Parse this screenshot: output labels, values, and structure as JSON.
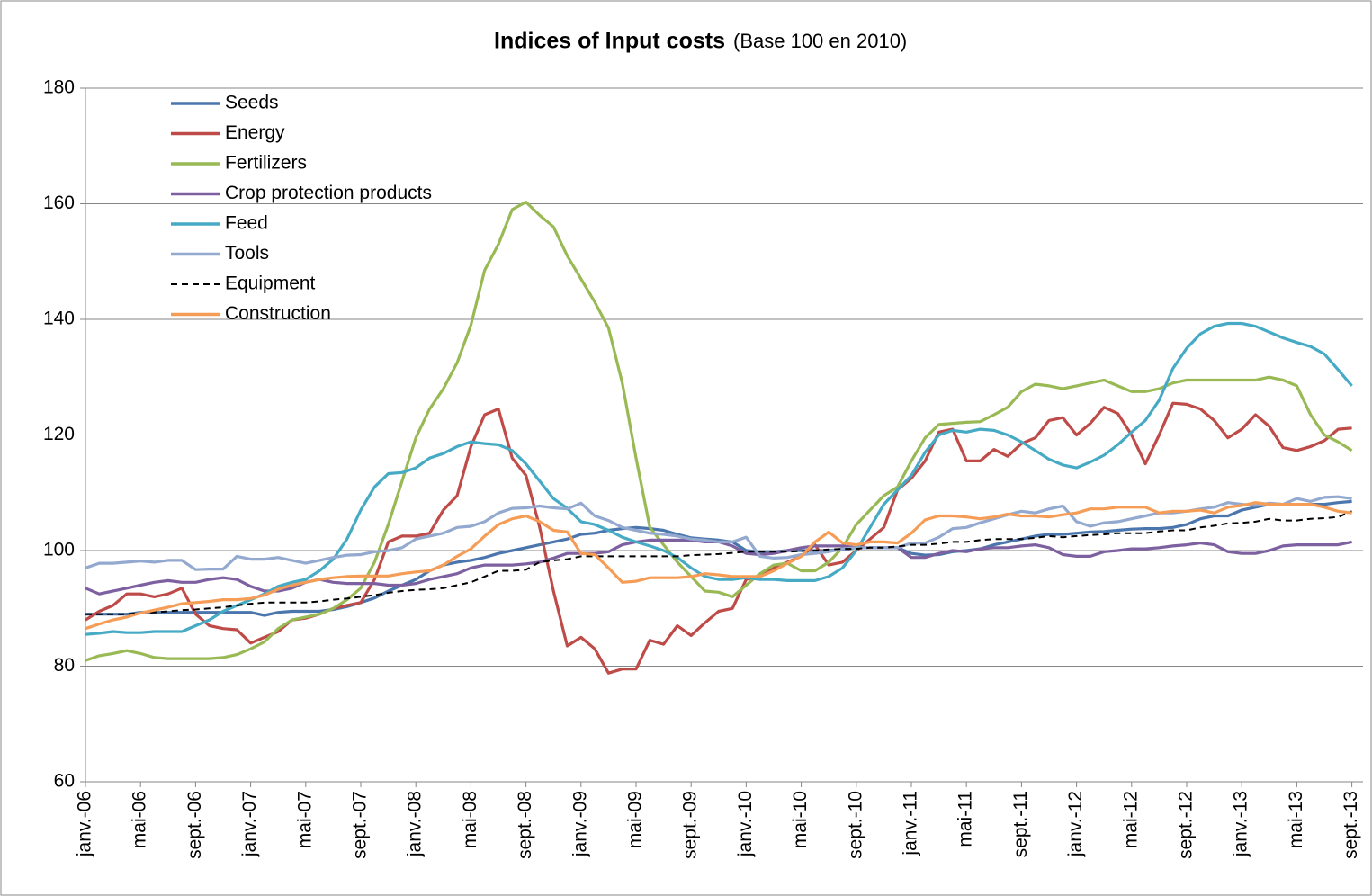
{
  "chart_data": {
    "type": "line",
    "title": "Indices of Input costs",
    "subtitle": "(Base 100 en 2010)",
    "categories": [
      "janv.-06",
      null,
      null,
      null,
      "mai-06",
      null,
      null,
      null,
      "sept.-06",
      null,
      null,
      null,
      "janv.-07",
      null,
      null,
      null,
      "mai-07",
      null,
      null,
      null,
      "sept.-07",
      null,
      null,
      null,
      "janv.-08",
      null,
      null,
      null,
      "mai-08",
      null,
      null,
      null,
      "sept.-08",
      null,
      null,
      null,
      "janv.-09",
      null,
      null,
      null,
      "mai-09",
      null,
      null,
      null,
      "sept.-09",
      null,
      null,
      null,
      "janv.-10",
      null,
      null,
      null,
      "mai-10",
      null,
      null,
      null,
      "sept.-10",
      null,
      null,
      null,
      "janv.-11",
      null,
      null,
      null,
      "mai-11",
      null,
      null,
      null,
      "sept.-11",
      null,
      null,
      null,
      "janv.-12",
      null,
      null,
      null,
      "mai-12",
      null,
      null,
      null,
      "sept.-12",
      null,
      null,
      null,
      "janv.-13",
      null,
      null,
      null,
      "mai-13",
      null,
      null,
      null,
      "sept.-13"
    ],
    "ylim": [
      60,
      180
    ],
    "yticks": [
      60,
      80,
      100,
      120,
      140,
      160,
      180
    ],
    "grid": true,
    "legend": "top-left",
    "series": [
      {
        "name": "Seeds",
        "color": "#4a76ad",
        "values": [
          89,
          89,
          89,
          89,
          89.3,
          89.3,
          89.3,
          89.3,
          89.3,
          89.3,
          89.3,
          89.3,
          89.3,
          88.8,
          89.3,
          89.5,
          89.5,
          89.5,
          89.8,
          90.3,
          91,
          91.8,
          93,
          94,
          95,
          96.5,
          97.5,
          98,
          98.3,
          98.8,
          99.5,
          100,
          100.5,
          101,
          101.5,
          102,
          102.8,
          103,
          103.5,
          103.8,
          104,
          103.8,
          103.5,
          102.8,
          102.2,
          102,
          101.8,
          101.5,
          100,
          99.8,
          99.8,
          100,
          100,
          100,
          100,
          100.2,
          100.5,
          100.5,
          100.5,
          100.5,
          99.5,
          99.2,
          99.3,
          99.8,
          100,
          100.3,
          101,
          101.5,
          102,
          102.5,
          102.8,
          102.8,
          103,
          103.2,
          103.3,
          103.5,
          103.7,
          103.8,
          103.8,
          104,
          104.5,
          105.5,
          106,
          106,
          107,
          107.5,
          108,
          108,
          108,
          108,
          108,
          108.3,
          108.5
        ]
      },
      {
        "name": "Energy",
        "color": "#be4b48",
        "values": [
          88,
          89.5,
          90.5,
          92.5,
          92.5,
          92,
          92.5,
          93.5,
          89,
          87,
          86.5,
          86.3,
          84,
          85,
          86,
          88,
          88.3,
          89,
          90,
          90.5,
          91,
          95,
          101.5,
          102.5,
          102.5,
          103,
          107,
          109.5,
          118,
          123.5,
          124.5,
          116,
          113,
          104,
          93,
          83.5,
          85,
          83,
          78.8,
          79.5,
          79.5,
          84.5,
          83.8,
          87,
          85.3,
          87.5,
          89.5,
          90,
          95,
          95.5,
          97,
          98,
          99,
          101,
          97.5,
          98,
          100,
          102,
          104,
          110.5,
          112.5,
          115.5,
          120.5,
          121,
          115.5,
          115.5,
          117.5,
          116.3,
          118.5,
          119.5,
          122.5,
          123,
          120,
          122,
          124.8,
          123.7,
          120,
          115,
          120,
          125.5,
          125.3,
          124.5,
          122.5,
          119.5,
          121,
          123.5,
          121.5,
          117.8,
          117.3,
          118,
          119,
          121,
          121.2
        ]
      },
      {
        "name": "Fertilizers",
        "color": "#98b954",
        "values": [
          81,
          81.8,
          82.2,
          82.7,
          82.2,
          81.5,
          81.3,
          81.3,
          81.3,
          81.3,
          81.5,
          82,
          83,
          84.2,
          86.5,
          88,
          88.5,
          89,
          90,
          91.5,
          93.5,
          98,
          104.5,
          112,
          119.5,
          124.5,
          128,
          132.5,
          139,
          148.5,
          153,
          159,
          160.3,
          158,
          156,
          151,
          147,
          143,
          138.5,
          129,
          116,
          104,
          101,
          98,
          95.5,
          93,
          92.8,
          92,
          94,
          96,
          97.5,
          97.8,
          96.5,
          96.5,
          98,
          100.5,
          104.5,
          107,
          109.5,
          111,
          115.5,
          119.5,
          121.8,
          122,
          122.2,
          122.3,
          123.5,
          124.8,
          127.5,
          128.8,
          128.5,
          128,
          128.5,
          129,
          129.5,
          128.5,
          127.5,
          127.5,
          128,
          129,
          129.5,
          129.5,
          129.5,
          129.5,
          129.5,
          129.5,
          130,
          129.5,
          128.5,
          123.5,
          120,
          118.8,
          117.3
        ]
      },
      {
        "name": "Crop protection products",
        "color": "#7d60a0",
        "values": [
          93.5,
          92.5,
          93,
          93.5,
          94,
          94.5,
          94.8,
          94.5,
          94.5,
          95,
          95.3,
          95,
          93.8,
          93,
          93,
          93.5,
          94.5,
          95,
          94.5,
          94.3,
          94.3,
          94.3,
          94,
          94,
          94.3,
          95,
          95.5,
          96,
          97,
          97.5,
          97.5,
          97.5,
          97.7,
          98,
          98.7,
          99.5,
          99.5,
          99.5,
          99.8,
          101,
          101.5,
          101.8,
          101.8,
          101.8,
          101.8,
          101.5,
          101.5,
          100.8,
          99.5,
          99.3,
          99.5,
          100,
          100.5,
          100.8,
          100.8,
          100.8,
          100.5,
          100.5,
          100.5,
          100.5,
          98.8,
          98.8,
          99.5,
          100,
          99.8,
          100.3,
          100.5,
          100.5,
          100.8,
          101,
          100.5,
          99.3,
          99,
          99,
          99.8,
          100,
          100.3,
          100.3,
          100.5,
          100.8,
          101,
          101.3,
          101,
          99.8,
          99.5,
          99.5,
          100,
          100.8,
          101,
          101,
          101,
          101,
          101.5
        ]
      },
      {
        "name": "Feed",
        "color": "#46aac5",
        "values": [
          85.5,
          85.7,
          86,
          85.8,
          85.8,
          86,
          86,
          86,
          87,
          88,
          89.5,
          90.5,
          91.5,
          92.5,
          93.8,
          94.5,
          95,
          96.5,
          98.5,
          102,
          107,
          111,
          113.3,
          113.5,
          114.3,
          116,
          116.8,
          118,
          118.8,
          118.5,
          118.3,
          117.3,
          115,
          112,
          109,
          107.3,
          105,
          104.5,
          103.5,
          102.3,
          101.5,
          100.8,
          100,
          98.8,
          97,
          95.5,
          95,
          95,
          95.3,
          95,
          95,
          94.8,
          94.8,
          94.8,
          95.5,
          97,
          100,
          104,
          108,
          110.5,
          113,
          117,
          120,
          120.8,
          120.5,
          121,
          120.8,
          120,
          118.8,
          117.3,
          115.8,
          114.8,
          114.3,
          115.3,
          116.5,
          118.3,
          120.5,
          122.5,
          126,
          131.5,
          135,
          137.5,
          138.8,
          139.3,
          139.3,
          138.8,
          137.8,
          136.8,
          136,
          135.3,
          134,
          131.3,
          128.5
        ]
      },
      {
        "name": "Tools",
        "color": "#93a9cf",
        "values": [
          97,
          97.8,
          97.8,
          98,
          98.2,
          98,
          98.3,
          98.3,
          96.7,
          96.8,
          96.8,
          99,
          98.5,
          98.5,
          98.8,
          98.3,
          97.8,
          98.3,
          98.8,
          99.2,
          99.3,
          99.8,
          100,
          100.5,
          102,
          102.5,
          103,
          104,
          104.2,
          105,
          106.5,
          107.3,
          107.4,
          107.7,
          107.4,
          107.2,
          108.2,
          106,
          105.2,
          104,
          103.5,
          103,
          102.8,
          102.5,
          102,
          101.8,
          101.5,
          101.5,
          102.3,
          99,
          98.7,
          98.8,
          99.3,
          99.5,
          99.8,
          100.3,
          100.5,
          100.5,
          100.5,
          100.5,
          101.3,
          101.3,
          102.3,
          103.8,
          104,
          104.8,
          105.5,
          106.2,
          106.8,
          106.5,
          107.2,
          107.7,
          105,
          104.2,
          104.8,
          105,
          105.5,
          106,
          106.5,
          106.5,
          106.8,
          107.2,
          107.5,
          108.3,
          108,
          107.8,
          108.2,
          108,
          109,
          108.5,
          109.2,
          109.3,
          109
        ]
      },
      {
        "name": "Equipment",
        "color": "#000000",
        "dash": "7,5",
        "values": [
          89,
          89,
          89,
          89,
          89.2,
          89.3,
          89.5,
          89.7,
          89.8,
          90,
          90.2,
          90.5,
          90.8,
          91,
          91,
          91,
          91,
          91.2,
          91.5,
          91.7,
          92,
          92.3,
          92.7,
          93,
          93.2,
          93.3,
          93.5,
          94,
          94.5,
          95.5,
          96.5,
          96.5,
          96.7,
          98,
          98.3,
          98.5,
          99,
          99,
          99,
          99,
          99,
          99,
          99,
          99,
          99.2,
          99.3,
          99.4,
          99.6,
          99.8,
          99.8,
          99.8,
          99.8,
          99.9,
          100,
          100.2,
          100.3,
          100.3,
          100.5,
          100.5,
          100.7,
          101,
          101,
          101.2,
          101.5,
          101.5,
          101.8,
          102,
          102,
          102,
          102.2,
          102.5,
          102.3,
          102.5,
          102.7,
          102.8,
          103,
          103,
          103,
          103.3,
          103.5,
          103.5,
          104,
          104.3,
          104.7,
          104.8,
          105,
          105.5,
          105.2,
          105.2,
          105.5,
          105.6,
          105.8,
          106.8
        ]
      },
      {
        "name": "Construction",
        "color": "#f59d56",
        "values": [
          86.5,
          87.3,
          88,
          88.5,
          89.2,
          89.7,
          90.2,
          90.8,
          91,
          91.2,
          91.5,
          91.5,
          91.7,
          92.3,
          93.3,
          94,
          94.5,
          95,
          95.3,
          95.5,
          95.6,
          95.6,
          95.6,
          96,
          96.3,
          96.5,
          97.5,
          99,
          100.3,
          102.5,
          104.5,
          105.5,
          106,
          105,
          103.5,
          103.2,
          99.5,
          99.3,
          97,
          94.5,
          94.7,
          95.3,
          95.3,
          95.3,
          95.5,
          96,
          95.8,
          95.5,
          95.5,
          95.5,
          96.5,
          97.8,
          99,
          101.5,
          103.2,
          101.3,
          101,
          101.5,
          101.5,
          101.3,
          103,
          105.3,
          106,
          106,
          105.8,
          105.5,
          105.8,
          106.3,
          106,
          106,
          105.8,
          106.2,
          106.5,
          107.2,
          107.2,
          107.5,
          107.5,
          107.5,
          106.5,
          106.8,
          106.8,
          107,
          106.5,
          107.5,
          107.8,
          108.3,
          108,
          108,
          108,
          108,
          107.5,
          106.8,
          106.5
        ]
      }
    ]
  }
}
